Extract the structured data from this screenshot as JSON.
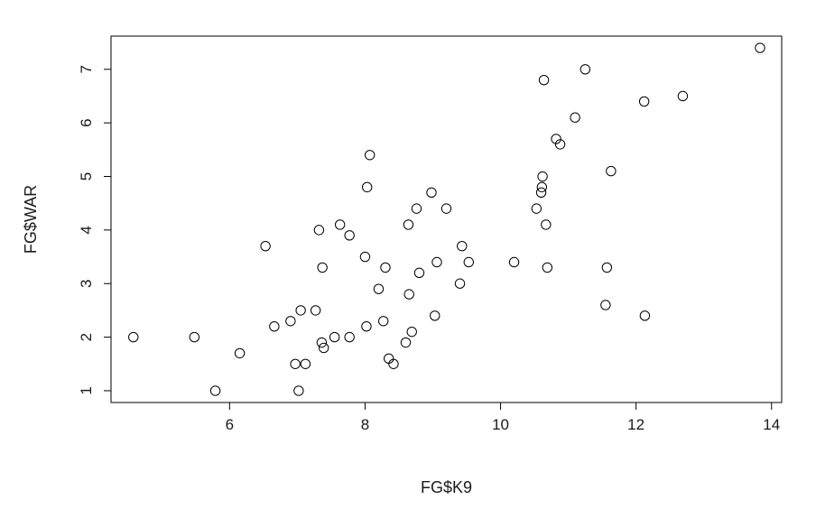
{
  "chart_data": {
    "type": "scatter",
    "xlabel": "FG$K9",
    "ylabel": "FG$WAR",
    "xlim": [
      4.25,
      14.15
    ],
    "ylim": [
      0.78,
      7.62
    ],
    "xticks": [
      6,
      8,
      10,
      12,
      14
    ],
    "yticks": [
      1,
      2,
      3,
      4,
      5,
      6,
      7
    ],
    "grid": false,
    "legend": "none",
    "marker": "open-circle",
    "colors": {
      "marker": "#000000",
      "axis": "#000000",
      "text": "#1a1a1a",
      "background": "#ffffff"
    },
    "points": [
      {
        "x": 4.58,
        "y": 2.0
      },
      {
        "x": 5.48,
        "y": 2.0
      },
      {
        "x": 5.79,
        "y": 1.0
      },
      {
        "x": 6.15,
        "y": 1.7
      },
      {
        "x": 6.53,
        "y": 3.7
      },
      {
        "x": 6.66,
        "y": 2.2
      },
      {
        "x": 6.9,
        "y": 2.3
      },
      {
        "x": 6.97,
        "y": 1.5
      },
      {
        "x": 7.02,
        "y": 1.0
      },
      {
        "x": 7.05,
        "y": 2.5
      },
      {
        "x": 7.12,
        "y": 1.5
      },
      {
        "x": 7.27,
        "y": 2.5
      },
      {
        "x": 7.32,
        "y": 4.0
      },
      {
        "x": 7.36,
        "y": 1.9
      },
      {
        "x": 7.37,
        "y": 3.3
      },
      {
        "x": 7.39,
        "y": 1.8
      },
      {
        "x": 7.55,
        "y": 2.0
      },
      {
        "x": 7.63,
        "y": 4.1
      },
      {
        "x": 7.77,
        "y": 2.0
      },
      {
        "x": 7.77,
        "y": 3.9
      },
      {
        "x": 8.0,
        "y": 3.5
      },
      {
        "x": 8.02,
        "y": 2.2
      },
      {
        "x": 8.03,
        "y": 4.8
      },
      {
        "x": 8.07,
        "y": 5.4
      },
      {
        "x": 8.2,
        "y": 2.9
      },
      {
        "x": 8.27,
        "y": 2.3
      },
      {
        "x": 8.3,
        "y": 3.3
      },
      {
        "x": 8.35,
        "y": 1.6
      },
      {
        "x": 8.42,
        "y": 1.5
      },
      {
        "x": 8.6,
        "y": 1.9
      },
      {
        "x": 8.64,
        "y": 4.1
      },
      {
        "x": 8.65,
        "y": 2.8
      },
      {
        "x": 8.69,
        "y": 2.1
      },
      {
        "x": 8.76,
        "y": 4.4
      },
      {
        "x": 8.8,
        "y": 3.2
      },
      {
        "x": 8.98,
        "y": 4.7
      },
      {
        "x": 9.03,
        "y": 2.4
      },
      {
        "x": 9.06,
        "y": 3.4
      },
      {
        "x": 9.2,
        "y": 4.4
      },
      {
        "x": 9.4,
        "y": 3.0
      },
      {
        "x": 9.43,
        "y": 3.7
      },
      {
        "x": 9.53,
        "y": 3.4
      },
      {
        "x": 10.2,
        "y": 3.4
      },
      {
        "x": 10.53,
        "y": 4.4
      },
      {
        "x": 10.6,
        "y": 4.7
      },
      {
        "x": 10.61,
        "y": 4.8
      },
      {
        "x": 10.62,
        "y": 5.0
      },
      {
        "x": 10.64,
        "y": 6.8
      },
      {
        "x": 10.67,
        "y": 4.1
      },
      {
        "x": 10.69,
        "y": 3.3
      },
      {
        "x": 10.82,
        "y": 5.7
      },
      {
        "x": 10.88,
        "y": 5.6
      },
      {
        "x": 11.1,
        "y": 6.1
      },
      {
        "x": 11.25,
        "y": 7.0
      },
      {
        "x": 11.55,
        "y": 2.6
      },
      {
        "x": 11.57,
        "y": 3.3
      },
      {
        "x": 11.63,
        "y": 5.1
      },
      {
        "x": 12.12,
        "y": 6.4
      },
      {
        "x": 12.13,
        "y": 2.4
      },
      {
        "x": 12.69,
        "y": 6.5
      },
      {
        "x": 13.83,
        "y": 7.4
      }
    ]
  }
}
